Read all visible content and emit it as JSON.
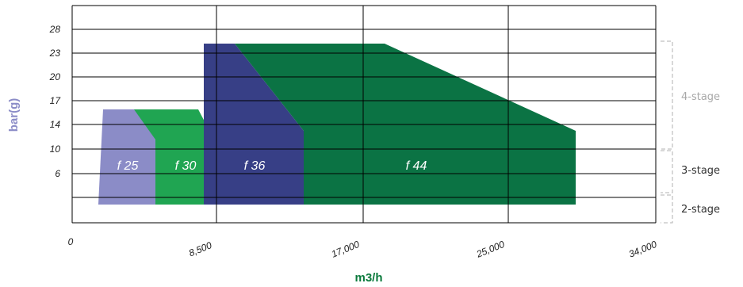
{
  "chart_data": {
    "type": "area",
    "xlabel": "m3/h",
    "ylabel": "bar(g)",
    "x_ticks": [
      "0",
      "8,500",
      "17,000",
      "25,000",
      "34,000"
    ],
    "y_ticks": [
      "28",
      "23",
      "20",
      "17",
      "14",
      "10",
      "6"
    ],
    "colors": {
      "f25": "#8b8cc7",
      "f30": "#20a552",
      "f36": "#373f86",
      "f44": "#0b7344",
      "xlabel": "#0b7a3c",
      "ylabel": "#8b8cc7",
      "stage_label": "#333333",
      "stage_label_muted": "#a8a8a8",
      "stage_bracket": "#b0b0b0"
    },
    "series": [
      {
        "name": "f 25"
      },
      {
        "name": "f 30"
      },
      {
        "name": "f 36"
      },
      {
        "name": "f 44"
      }
    ],
    "stages": [
      "4-stage",
      "3-stage",
      "2-stage"
    ]
  }
}
